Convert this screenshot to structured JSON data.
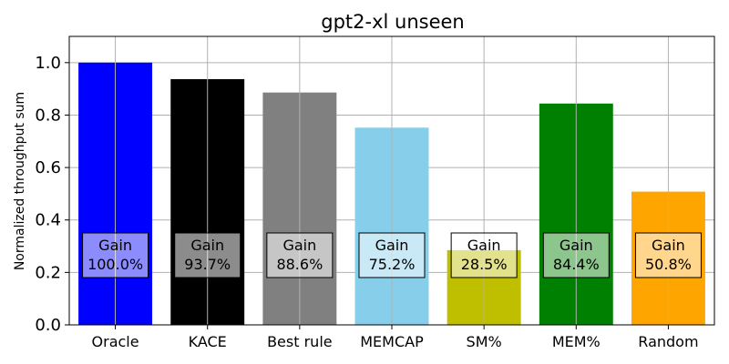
{
  "chart_data": {
    "type": "bar",
    "title": "gpt2-xl unseen",
    "xlabel": "",
    "ylabel": "Normalized throughput sum",
    "ylim": [
      0,
      1.1
    ],
    "yticks": [
      "0.0",
      "0.2",
      "0.4",
      "0.6",
      "0.8",
      "1.0"
    ],
    "grid": true,
    "categories": [
      "Oracle",
      "KACE",
      "Best rule",
      "MEMCAP",
      "SM%",
      "MEM%",
      "Random"
    ],
    "values": [
      1.0,
      0.937,
      0.886,
      0.752,
      0.285,
      0.844,
      0.508
    ],
    "colors": [
      "#0000ff",
      "#000000",
      "#808080",
      "#87ceeb",
      "#bfbf00",
      "#008000",
      "#ffa500"
    ],
    "annotations": [
      {
        "line1": "Gain",
        "line2": "100.0%"
      },
      {
        "line1": "Gain",
        "line2": "93.7%"
      },
      {
        "line1": "Gain",
        "line2": "88.6%"
      },
      {
        "line1": "Gain",
        "line2": "75.2%"
      },
      {
        "line1": "Gain",
        "line2": "28.5%"
      },
      {
        "line1": "Gain",
        "line2": "84.4%"
      },
      {
        "line1": "Gain",
        "line2": "50.8%"
      }
    ]
  }
}
